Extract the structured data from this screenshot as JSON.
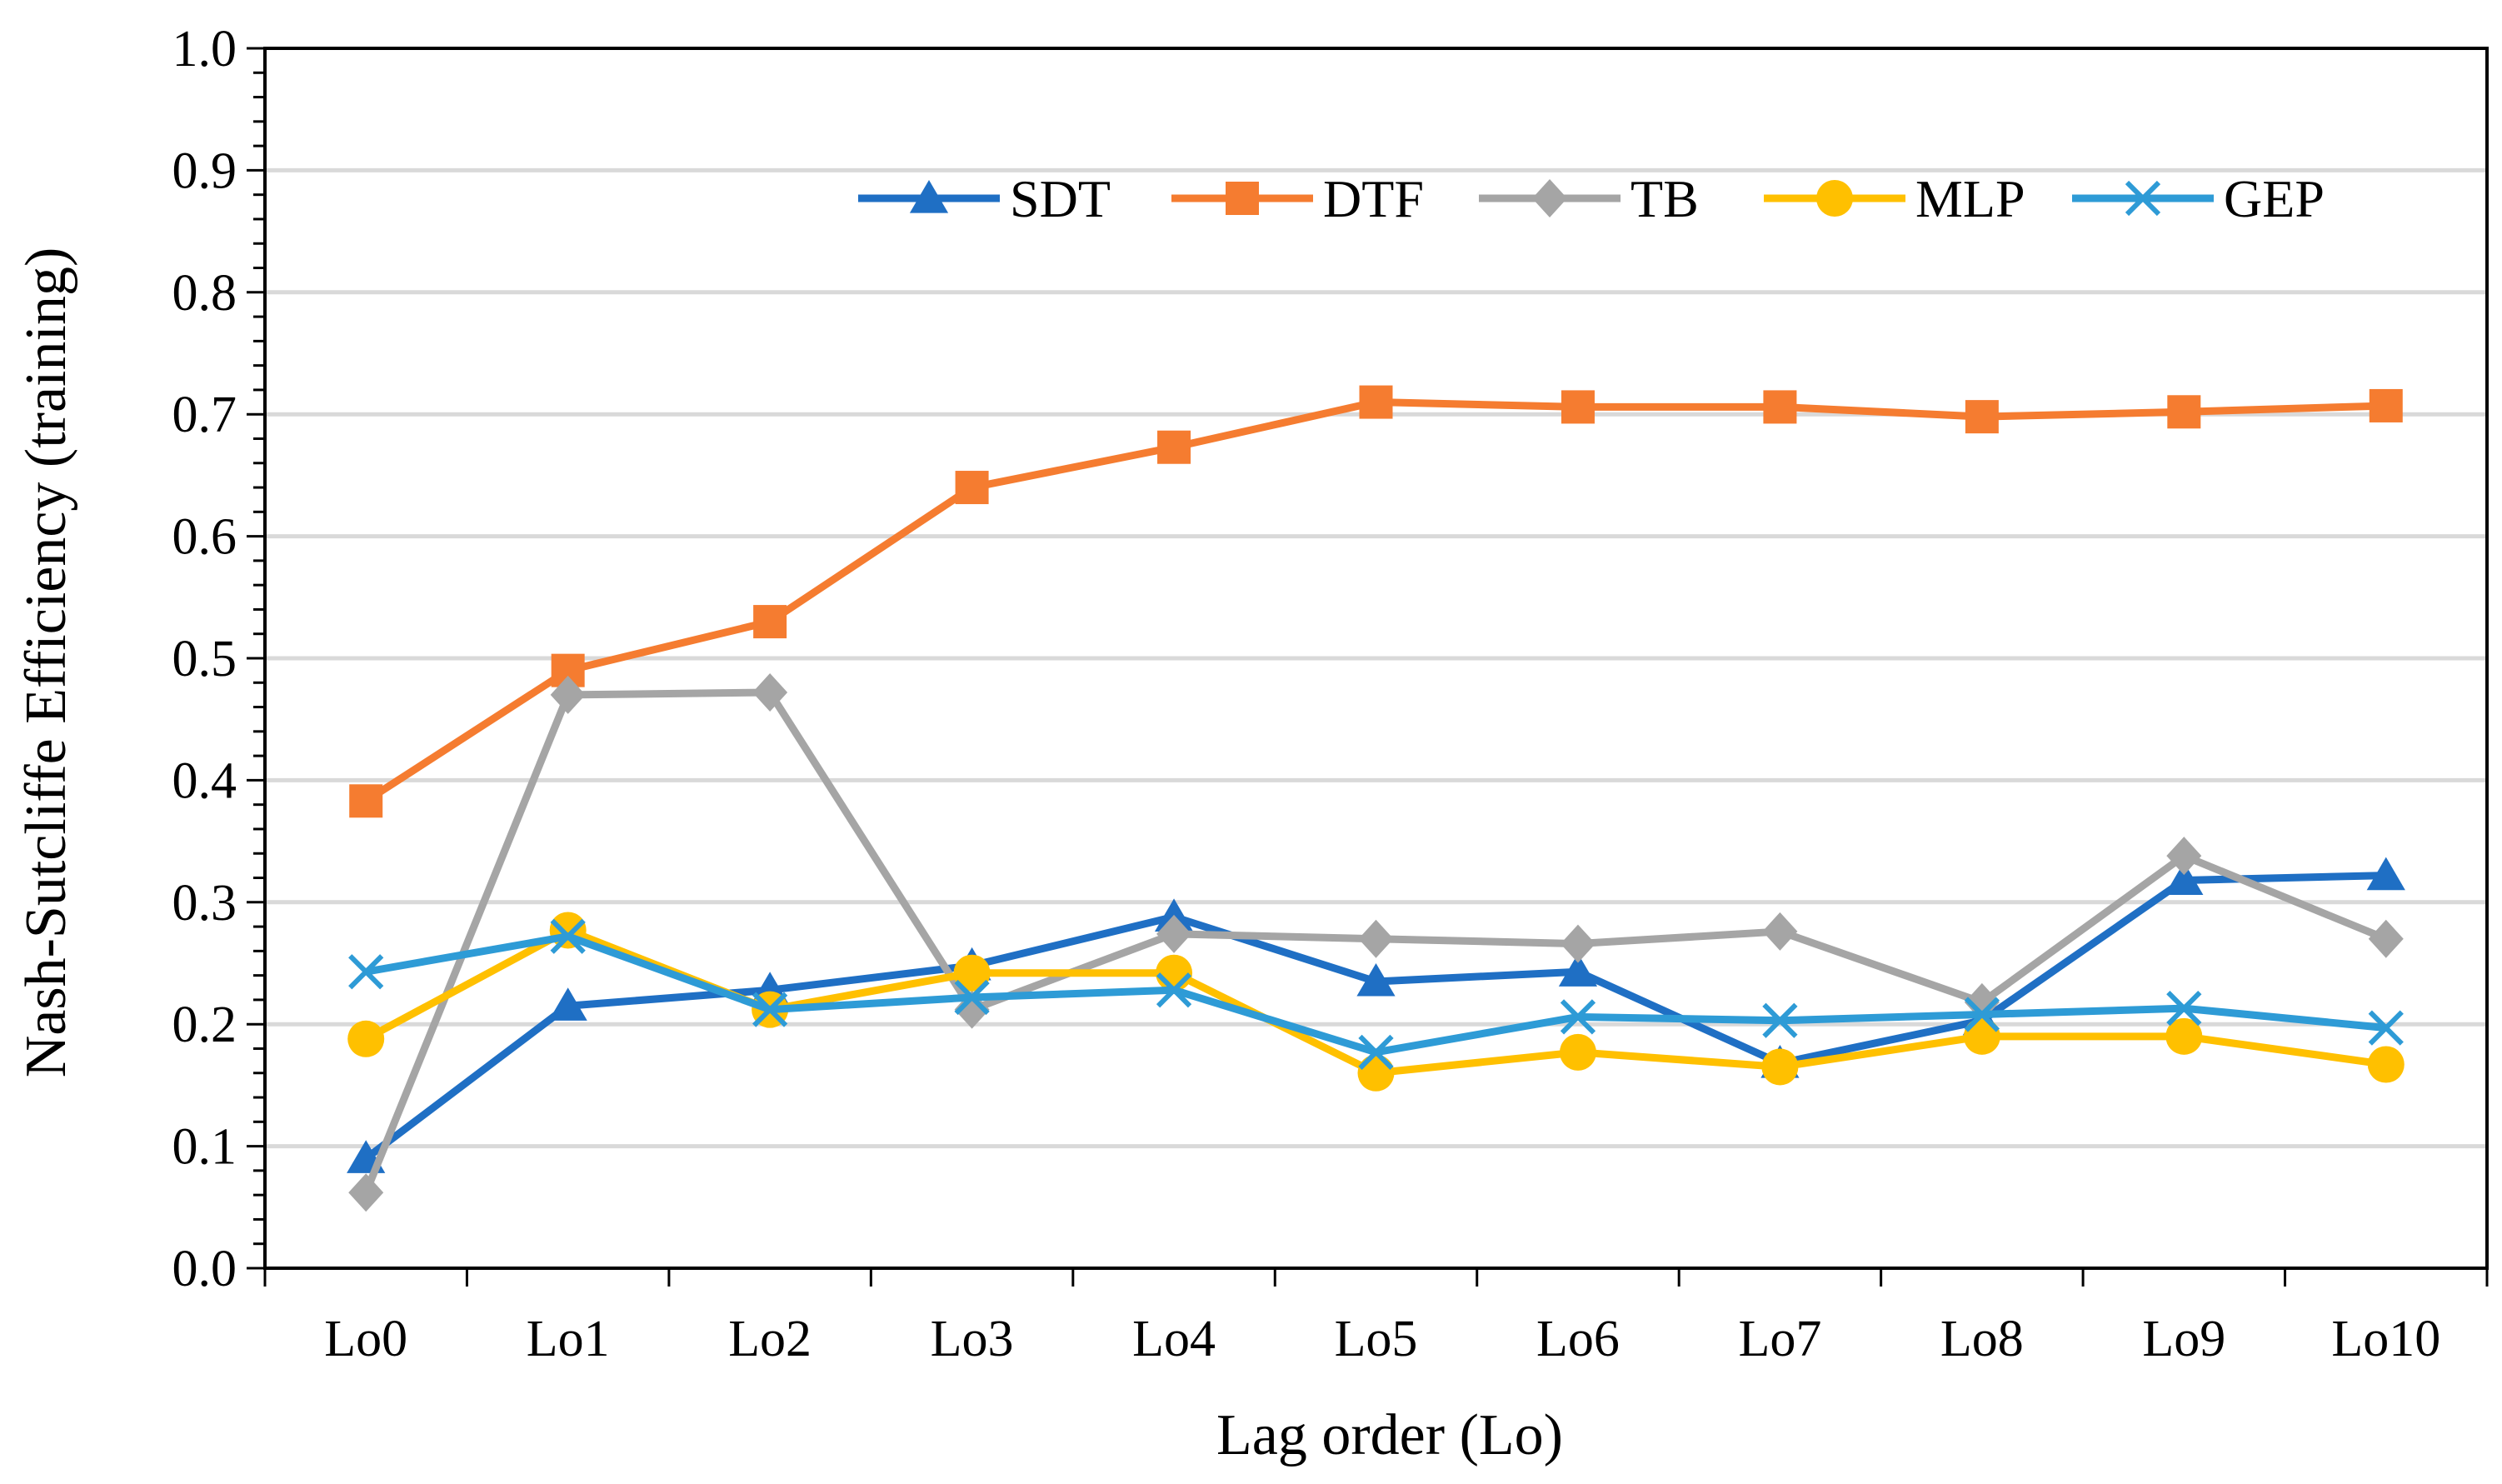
{
  "chart_data": {
    "type": "line",
    "xlabel": "Lag order (Lo)",
    "ylabel": "Nash-Sutcliffe Efficiency (training)",
    "ylim": [
      0.0,
      1.0
    ],
    "y_ticks": [
      "0.0",
      "0.1",
      "0.2",
      "0.3",
      "0.4",
      "0.5",
      "0.6",
      "0.7",
      "0.8",
      "0.9",
      "1.0"
    ],
    "y_minor_step": 0.02,
    "grid": "horizontal major",
    "legend_position": "top-right",
    "categories": [
      "Lo0",
      "Lo1",
      "Lo2",
      "Lo3",
      "Lo4",
      "Lo5",
      "Lo6",
      "Lo7",
      "Lo8",
      "Lo9",
      "Lo10"
    ],
    "series": [
      {
        "name": "SDT",
        "color": "#1F6FC4",
        "marker": "triangle",
        "values": [
          0.09,
          0.215,
          0.228,
          0.248,
          0.288,
          0.235,
          0.243,
          0.168,
          0.203,
          0.318,
          0.322
        ]
      },
      {
        "name": "DTF",
        "color": "#F57C30",
        "marker": "square",
        "values": [
          0.383,
          0.49,
          0.53,
          0.64,
          0.673,
          0.71,
          0.706,
          0.706,
          0.698,
          0.702,
          0.707
        ]
      },
      {
        "name": "TB",
        "color": "#A5A5A5",
        "marker": "diamond",
        "values": [
          0.062,
          0.47,
          0.472,
          0.212,
          0.274,
          0.27,
          0.266,
          0.276,
          0.218,
          0.338,
          0.27
        ]
      },
      {
        "name": "MLP",
        "color": "#FFC000",
        "marker": "circle",
        "values": [
          0.188,
          0.277,
          0.212,
          0.242,
          0.242,
          0.16,
          0.177,
          0.165,
          0.19,
          0.19,
          0.167
        ]
      },
      {
        "name": "GEP",
        "color": "#2E9BD6",
        "marker": "x",
        "values": [
          0.243,
          0.272,
          0.212,
          0.222,
          0.228,
          0.177,
          0.206,
          0.203,
          0.208,
          0.213,
          0.197
        ]
      }
    ]
  }
}
